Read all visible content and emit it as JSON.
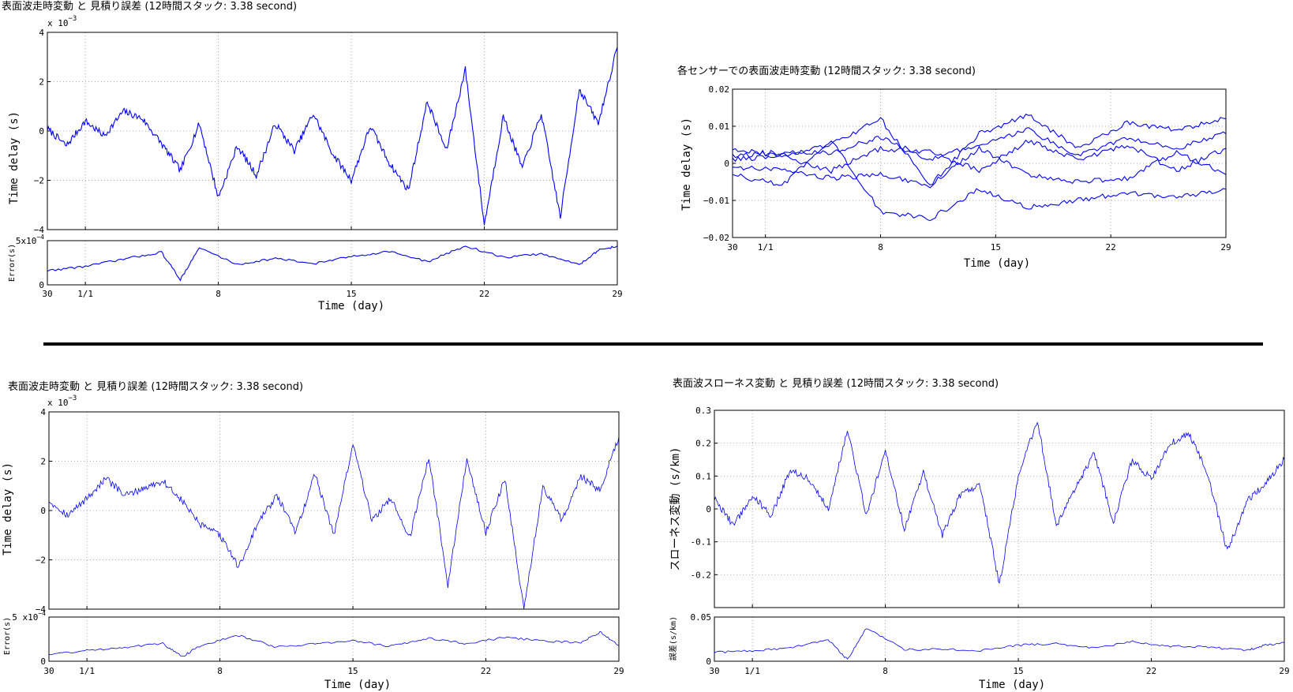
{
  "colors": {
    "trace": "#0000ff",
    "axis": "#000000",
    "grid": "#8c8c8c",
    "divider": "#000000"
  },
  "days": {
    "tick_labels": [
      "30",
      "1/1",
      "8",
      "15",
      "22",
      "29"
    ],
    "tick_days": [
      0,
      2,
      9,
      16,
      23,
      30
    ],
    "xlabel": "Time (day)",
    "range": [
      0,
      30
    ]
  },
  "panels": [
    {
      "id": "p1",
      "title": "表面波走時変動 と 見積り誤差 (12時間スタック: 3.38 second)",
      "main": {
        "ylabel": "Time delay (s)",
        "ylim": [
          -4,
          4
        ],
        "yticks": [
          "4",
          "2",
          "0",
          "−2",
          "−4"
        ],
        "ytick_values": [
          4,
          2,
          0,
          -2,
          -4
        ],
        "exponent_label": "x 10",
        "exponent_sup": "−3"
      },
      "error": {
        "ylabel": "Error(s)",
        "ylim": [
          0,
          5
        ],
        "yticks": [
          "5x10",
          "0"
        ],
        "ytick_values": [
          5,
          0
        ],
        "exp_sup": "−4"
      },
      "xlabel": "Time (day)"
    },
    {
      "id": "p2",
      "title": "各センサーでの表面波走時変動 (12時間スタック: 3.38 second)",
      "main": {
        "ylabel": "Time delay (s)",
        "ylim": [
          -0.02,
          0.02
        ],
        "yticks": [
          "0.02",
          "0.01",
          "0",
          "−0.01",
          "−0.02"
        ],
        "ytick_values": [
          0.02,
          0.01,
          0,
          -0.01,
          -0.02
        ]
      },
      "xlabel": "Time (day)"
    },
    {
      "id": "p3",
      "title": "表面波走時変動 と 見積り誤差 (12時間スタック: 3.38 second)",
      "main": {
        "ylabel": "Time delay (s)",
        "ylim": [
          -4,
          4
        ],
        "yticks": [
          "4",
          "2",
          "0",
          "−2",
          "−4"
        ],
        "ytick_values": [
          4,
          2,
          0,
          -2,
          -4
        ],
        "exponent_label": "x 10",
        "exponent_sup": "−3"
      },
      "error": {
        "ylabel": "Error(s)",
        "ylim": [
          0,
          5
        ],
        "yticks": [
          "5 x10",
          "0"
        ],
        "ytick_values": [
          5,
          0
        ],
        "exp_sup": "−4"
      },
      "xlabel": "Time (day)"
    },
    {
      "id": "p4",
      "title": "表面波スローネス変動 と 見積り誤差 (12時間スタック: 3.38 second)",
      "main": {
        "ylabel": "スローネス変動 (s/km)",
        "ylim": [
          -0.3,
          0.3
        ],
        "yticks": [
          "0.3",
          "0.2",
          "0.1",
          "0",
          "-0.1",
          "-0.2"
        ],
        "ytick_values": [
          0.3,
          0.2,
          0.1,
          0,
          -0.1,
          -0.2
        ]
      },
      "error": {
        "ylabel": "誤差(s/km)",
        "ylim": [
          0,
          0.05
        ],
        "yticks": [
          "0.05",
          "0"
        ],
        "ytick_values": [
          0.05,
          0
        ]
      },
      "xlabel": "Time (day)"
    }
  ],
  "chart_data": [
    {
      "type": "line",
      "title": "表面波走時変動 と 見積り誤差 (12時間スタック: 3.38 second)",
      "xlabel": "Time (day)",
      "ylabel": "Time delay (s)",
      "y_scale": "1e-3",
      "xlim": [
        0,
        30
      ],
      "ylim": [
        -4,
        4
      ],
      "grid": true,
      "x": [
        0,
        1,
        2,
        3,
        4,
        5,
        6,
        7,
        8,
        9,
        10,
        11,
        12,
        13,
        14,
        15,
        16,
        17,
        18,
        19,
        20,
        21,
        22,
        23,
        24,
        25,
        26,
        27,
        28,
        29,
        30
      ],
      "series": [
        {
          "values": [
            0.1,
            -0.6,
            0.4,
            -0.2,
            0.8,
            0.5,
            -0.5,
            -1.6,
            0.3,
            -2.7,
            -0.6,
            -1.8,
            0.3,
            -0.8,
            0.7,
            -0.9,
            -2.0,
            0.2,
            -1.3,
            -2.4,
            1.2,
            -0.8,
            2.5,
            -3.8,
            0.6,
            -1.5,
            0.7,
            -3.5,
            1.7,
            0.3,
            3.4
          ]
        }
      ]
    },
    {
      "type": "line",
      "title": "表面波走時変動 と 見積り誤差 (12時間スタック: 3.38 second)",
      "xlabel": "Time (day)",
      "ylabel": "Error(s)",
      "y_scale": "1e-4",
      "xlim": [
        0,
        30
      ],
      "ylim": [
        0,
        5
      ],
      "grid": true,
      "x": [
        0,
        2,
        4,
        6,
        7,
        8,
        10,
        12,
        14,
        16,
        18,
        20,
        22,
        24,
        26,
        28,
        29,
        30
      ],
      "series": [
        {
          "values": [
            1.6,
            2.1,
            2.9,
            3.7,
            0.6,
            4.2,
            2.3,
            3.0,
            2.4,
            3.2,
            3.8,
            2.6,
            4.4,
            3.1,
            3.5,
            2.3,
            3.9,
            4.4
          ]
        }
      ]
    },
    {
      "type": "line",
      "title": "各センサーでの表面波走時変動 (12時間スタック: 3.38 second)",
      "xlabel": "Time (day)",
      "ylabel": "Time delay (s)",
      "xlim": [
        0,
        30
      ],
      "ylim": [
        -0.02,
        0.02
      ],
      "grid": true,
      "x": [
        0,
        3,
        6,
        9,
        12,
        15,
        18,
        21,
        24,
        27,
        30
      ],
      "series": [
        {
          "values": [
            0.004,
            0.002,
            0.005,
            0.012,
            -0.006,
            0.008,
            0.013,
            0.004,
            0.011,
            0.009,
            0.012
          ]
        },
        {
          "values": [
            -0.003,
            -0.006,
            0.006,
            -0.013,
            -0.015,
            -0.007,
            -0.012,
            -0.01,
            -0.008,
            -0.009,
            -0.007
          ]
        },
        {
          "values": [
            0.001,
            0.002,
            -0.002,
            0.004,
            0.003,
            -0.002,
            0.006,
            0.001,
            0.005,
            -0.002,
            0.004
          ]
        },
        {
          "values": [
            -0.001,
            -0.002,
            -0.004,
            -0.003,
            -0.006,
            0.004,
            -0.003,
            -0.005,
            -0.004,
            0.003,
            -0.003
          ]
        },
        {
          "values": [
            0.002,
            0.003,
            0.003,
            0.007,
            0.001,
            0.005,
            0.009,
            0.002,
            0.007,
            0.004,
            0.008
          ]
        }
      ]
    },
    {
      "type": "line",
      "title": "表面波走時変動 と 見積り誤差 (12時間スタック: 3.38 second)",
      "xlabel": "Time (day)",
      "ylabel": "Time delay (s)",
      "y_scale": "1e-3",
      "xlim": [
        0,
        30
      ],
      "ylim": [
        -4,
        4
      ],
      "grid": true,
      "x": [
        0,
        1,
        2,
        3,
        4,
        5,
        6,
        7,
        8,
        9,
        10,
        11,
        12,
        13,
        14,
        15,
        16,
        17,
        18,
        19,
        20,
        21,
        22,
        23,
        24,
        25,
        26,
        27,
        28,
        29,
        30
      ],
      "series": [
        {
          "values": [
            0.4,
            -0.2,
            0.5,
            1.3,
            0.6,
            0.9,
            1.2,
            0.4,
            -0.6,
            -1.0,
            -2.3,
            -0.5,
            0.6,
            -0.9,
            1.5,
            -1.0,
            2.7,
            -0.4,
            0.5,
            -1.1,
            2.2,
            -3.0,
            2.1,
            -0.9,
            1.3,
            -4.0,
            1.0,
            -0.4,
            1.4,
            0.8,
            3.0
          ]
        }
      ]
    },
    {
      "type": "line",
      "title": "表面波走時変動 と 見積り誤差 (12時間スタック: 3.38 second)",
      "xlabel": "Time (day)",
      "ylabel": "Error(s)",
      "y_scale": "1e-4",
      "xlim": [
        0,
        30
      ],
      "ylim": [
        0,
        5
      ],
      "grid": true,
      "x": [
        0,
        2,
        4,
        6,
        7,
        8,
        10,
        12,
        14,
        16,
        18,
        20,
        22,
        24,
        26,
        28,
        29,
        30
      ],
      "series": [
        {
          "values": [
            0.8,
            1.2,
            1.6,
            2.0,
            0.5,
            1.8,
            2.9,
            1.6,
            2.0,
            2.3,
            1.7,
            2.6,
            2.0,
            2.7,
            2.3,
            2.1,
            3.3,
            1.8
          ]
        }
      ]
    },
    {
      "type": "line",
      "title": "表面波スローネス変動 と 見積り誤差 (12時間スタック: 3.38 second)",
      "xlabel": "Time (day)",
      "ylabel": "スローネス変動 (s/km)",
      "xlim": [
        0,
        30
      ],
      "ylim": [
        -0.3,
        0.3
      ],
      "grid": true,
      "x": [
        0,
        1,
        2,
        3,
        4,
        5,
        6,
        7,
        8,
        9,
        10,
        11,
        12,
        13,
        14,
        15,
        16,
        17,
        18,
        19,
        20,
        21,
        22,
        23,
        24,
        25,
        26,
        27,
        28,
        29,
        30
      ],
      "series": [
        {
          "values": [
            0.03,
            -0.05,
            0.04,
            -0.02,
            0.12,
            0.09,
            0.0,
            0.24,
            -0.02,
            0.18,
            -0.06,
            0.11,
            -0.08,
            0.05,
            0.07,
            -0.23,
            0.1,
            0.27,
            -0.05,
            0.06,
            0.17,
            -0.04,
            0.15,
            0.09,
            0.2,
            0.23,
            0.1,
            -0.13,
            0.02,
            0.08,
            0.15
          ]
        }
      ]
    },
    {
      "type": "line",
      "title": "表面波スローネス変動 と 見積り誤差 (12時間スタック: 3.38 second)",
      "xlabel": "Time (day)",
      "ylabel": "誤差(s/km)",
      "xlim": [
        0,
        30
      ],
      "ylim": [
        0,
        0.05
      ],
      "grid": true,
      "x": [
        0,
        2,
        4,
        6,
        7,
        8,
        10,
        12,
        14,
        16,
        18,
        20,
        22,
        24,
        26,
        28,
        29,
        30
      ],
      "series": [
        {
          "values": [
            0.01,
            0.012,
            0.015,
            0.024,
            0.002,
            0.038,
            0.013,
            0.014,
            0.012,
            0.018,
            0.02,
            0.015,
            0.022,
            0.017,
            0.016,
            0.012,
            0.018,
            0.021
          ]
        }
      ]
    }
  ]
}
